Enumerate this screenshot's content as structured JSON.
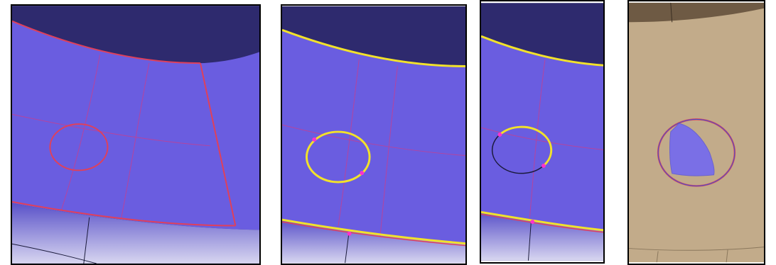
{
  "figure": {
    "panels": [
      {
        "id": "p1",
        "kind": "mesh-view",
        "state": "hole-outline-unselected"
      },
      {
        "id": "p2",
        "kind": "mesh-view",
        "state": "hole-outline-selected"
      },
      {
        "id": "p3",
        "kind": "mesh-view",
        "state": "hole-outline-partially-selected"
      },
      {
        "id": "p4",
        "kind": "mesh-view",
        "state": "hole-filled"
      }
    ]
  },
  "colors": {
    "surface_blue": "#6a5de0",
    "surface_dark": "#2e2a6e",
    "surface_light": "#7f74ea",
    "rim_gradient_top": "#5a52c9",
    "rim_gradient_bottom": "#d8d6f0",
    "edge_red": "#e0405a",
    "grid_red": "#b5449e",
    "selected_yellow": "#f2e22a",
    "vertex_magenta": "#ff33cc",
    "panel4_surface": "#c2ab8a",
    "panel4_dark": "#6e5a44",
    "panel4_patch": "#7a6fe6",
    "border": "#000000"
  }
}
